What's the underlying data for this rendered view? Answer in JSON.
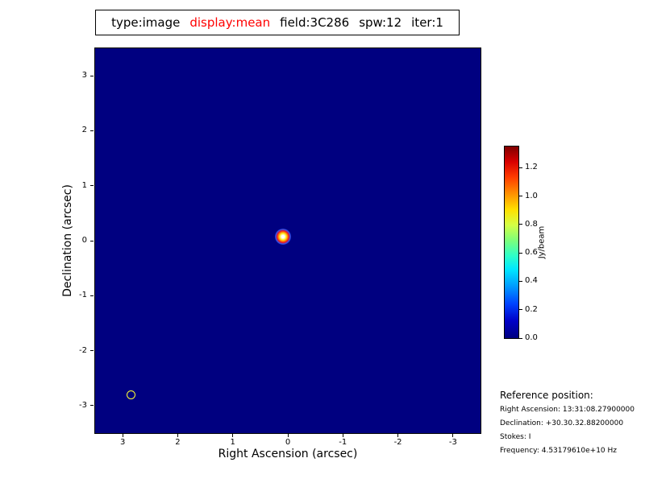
{
  "title": {
    "parts": [
      {
        "text": "type:image",
        "highlight": false
      },
      {
        "text": "display:mean",
        "highlight": true
      },
      {
        "text": "field:3C286",
        "highlight": false
      },
      {
        "text": "spw:12",
        "highlight": false
      },
      {
        "text": "iter:1",
        "highlight": false
      }
    ]
  },
  "colors": {
    "title_highlight": "#ff0000",
    "image_background": "#000080",
    "beam_outline": "#ffff00",
    "colorbar_top": "#7f0000"
  },
  "chart_data": {
    "type": "heatmap",
    "title": "type:image display:mean field:3C286 spw:12 iter:1",
    "xlabel": "Right Ascension (arcsec)",
    "ylabel": "Declination (arcsec)",
    "xlim": [
      3.5,
      -3.5
    ],
    "ylim": [
      -3.5,
      3.5
    ],
    "x_ticks": [
      3,
      2,
      1,
      0,
      -1,
      -2,
      -3
    ],
    "y_ticks": [
      -3,
      -2,
      -1,
      0,
      1,
      2,
      3
    ],
    "colormap": "jet",
    "background_value": 0.0,
    "source": {
      "x": 0.09,
      "y": 0.08,
      "peak_value": 1.35
    },
    "beam": {
      "x": 2.84,
      "y": -2.81
    },
    "colorbar": {
      "label": "Jy/beam",
      "position": "right",
      "ticks": [
        "0.0",
        "0.2",
        "0.4",
        "0.6",
        "0.8",
        "1.0",
        "1.2"
      ],
      "tick_values": [
        0.0,
        0.2,
        0.4,
        0.6,
        0.8,
        1.0,
        1.2
      ],
      "vmin": 0.0,
      "vmax": 1.35
    }
  },
  "reference": {
    "heading": "Reference position:",
    "lines": [
      "Right Ascension: 13:31:08.27900000",
      "Declination: +30.30.32.88200000",
      "Stokes: I",
      "Frequency: 4.53179610e+10 Hz"
    ]
  }
}
